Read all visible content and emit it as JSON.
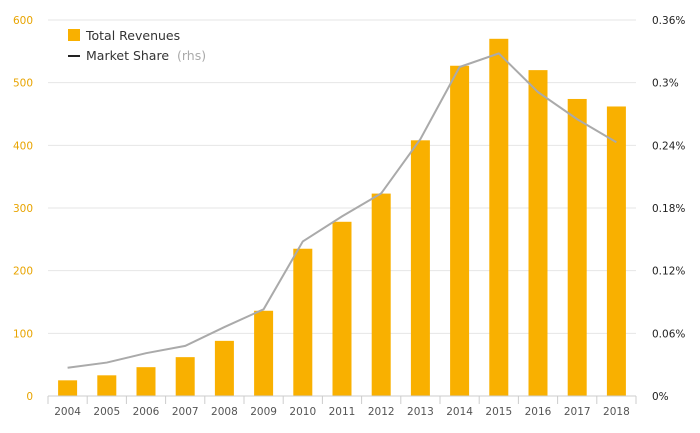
{
  "colors": {
    "bar": "#F9B000",
    "line": "#AAAAAA",
    "left_tick": "#E8A400",
    "right_tick": "#222222",
    "grid": "#E6E6E6",
    "x_tick": "#555555",
    "legend_text": "#333333",
    "legend_muted": "#AAAAAA"
  },
  "legend": {
    "revenues_label": "Total Revenues",
    "share_label": "Market Share",
    "share_suffix": "(rhs)"
  },
  "chart_data": {
    "type": "bar",
    "categories": [
      "2004",
      "2005",
      "2006",
      "2007",
      "2008",
      "2009",
      "2010",
      "2011",
      "2012",
      "2013",
      "2014",
      "2015",
      "2016",
      "2017",
      "2018"
    ],
    "series": [
      {
        "name": "Total Revenues",
        "type": "bar",
        "axis": "left",
        "values": [
          25,
          33,
          46,
          62,
          88,
          136,
          235,
          278,
          323,
          408,
          527,
          570,
          520,
          474,
          462
        ]
      },
      {
        "name": "Market Share",
        "type": "line",
        "axis": "right",
        "values": [
          0.027,
          0.032,
          0.041,
          0.048,
          0.066,
          0.083,
          0.148,
          0.172,
          0.194,
          0.246,
          0.315,
          0.328,
          0.291,
          0.265,
          0.243
        ]
      }
    ],
    "left_axis": {
      "ylim": [
        0,
        600
      ],
      "ticks": [
        "0",
        "100",
        "200",
        "300",
        "400",
        "500",
        "600"
      ]
    },
    "right_axis": {
      "ylim": [
        0,
        0.36
      ],
      "ticks": [
        "0%",
        "0.06%",
        "0.12%",
        "0.18%",
        "0.24%",
        "0.3%",
        "0.36%"
      ]
    },
    "grid": true,
    "legend_position": "top-left"
  }
}
